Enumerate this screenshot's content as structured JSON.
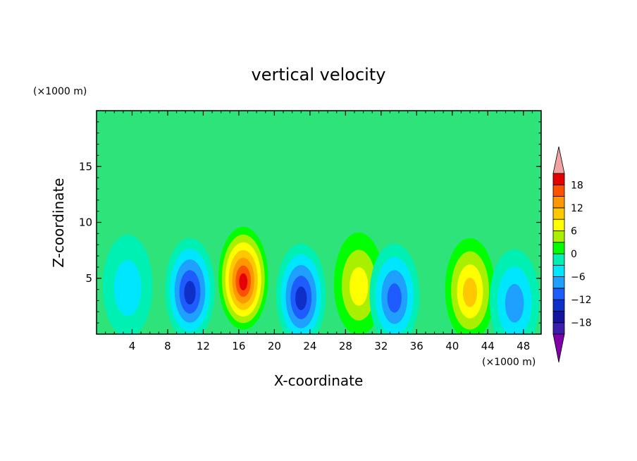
{
  "chart_data": {
    "type": "heatmap",
    "title": "vertical velocity",
    "xlabel": "X-coordinate",
    "ylabel": "Z-coordinate",
    "x_unit": "(×1000 m)",
    "y_unit": "(×1000 m)",
    "xlim": [
      0,
      50
    ],
    "ylim": [
      0,
      20
    ],
    "x_ticks": [
      "4",
      "8",
      "12",
      "16",
      "20",
      "24",
      "28",
      "32",
      "36",
      "40",
      "44",
      "48"
    ],
    "y_ticks": [
      "5",
      "10",
      "15"
    ],
    "colorbar": {
      "levels": [
        -21,
        -18,
        -15,
        -12,
        -9,
        -6,
        -3,
        0,
        3,
        6,
        9,
        12,
        15,
        18,
        21
      ],
      "tick_labels": [
        "18",
        "12",
        "6",
        "0",
        "−6",
        "−12",
        "−18"
      ],
      "tick_values": [
        18,
        12,
        6,
        0,
        -6,
        -12,
        -18
      ],
      "colors": [
        "#7f00a6",
        "#3c1dad",
        "#1414a0",
        "#0f30c8",
        "#1f5cff",
        "#1fa0ff",
        "#00e6ff",
        "#00f0b4",
        "#00ff00",
        "#a8f000",
        "#ffff00",
        "#ffc800",
        "#ff9800",
        "#ff5000",
        "#e40000",
        "#f2a2a2"
      ]
    },
    "cells": [
      {
        "x": 3.5,
        "z": 4.3,
        "w": -0.5
      },
      {
        "x": 10.5,
        "z": 4.0,
        "w": -13
      },
      {
        "x": 16.5,
        "z": 5.0,
        "w": 19
      },
      {
        "x": 23.0,
        "z": 3.5,
        "w": -12
      },
      {
        "x": 29.5,
        "z": 4.5,
        "w": 5
      },
      {
        "x": 33.5,
        "z": 3.5,
        "w": -10
      },
      {
        "x": 42.0,
        "z": 4.0,
        "w": 10
      },
      {
        "x": 47.0,
        "z": 3.0,
        "w": -7
      }
    ]
  }
}
